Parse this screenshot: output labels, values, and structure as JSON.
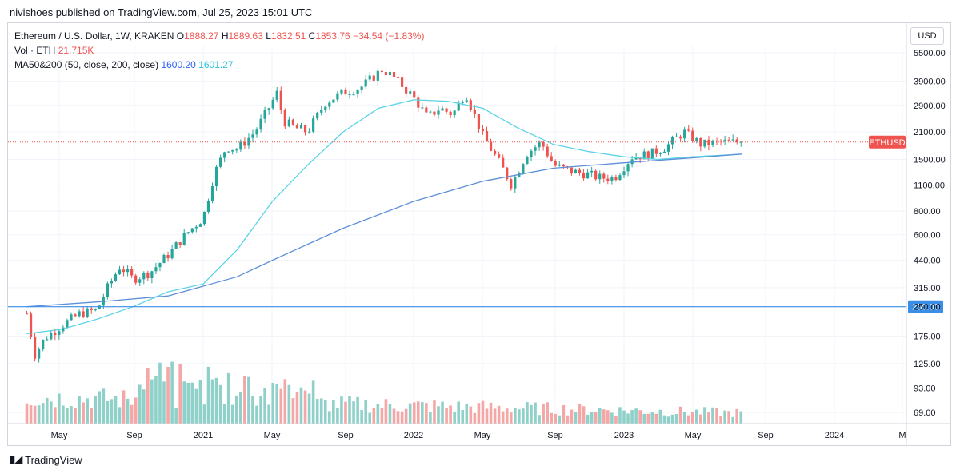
{
  "publisher": "nivishoes published on TradingView.com, Jul 25, 2023 15:01 UTC",
  "legend": {
    "symbol": "Ethereum / U.S. Dollar, 1W, KRAKEN",
    "open_label": "O",
    "open": "1888.27",
    "high_label": "H",
    "high": "1889.63",
    "low_label": "L",
    "low": "1832.51",
    "close_label": "C",
    "close": "1853.76",
    "change": "−34.54 (−1.83%)",
    "vol_label": "Vol · ETH",
    "vol_value": "21.715K",
    "ma_label": "MA50&200 (50, close, 200, close)",
    "ma50_value": "1600.20",
    "ma200_value": "1601.27"
  },
  "currency_button": "USD",
  "price_tag": "ETHUSD",
  "level_tag": "250.00",
  "footer_brand": "TradingView",
  "colors": {
    "up": "#26a69a",
    "down": "#ef5350",
    "up_volume": "#8fd1c9",
    "down_volume": "#f4a7a6",
    "ma50": "#5bd3e6",
    "ma200": "#5b8fd6",
    "level_line": "#3a8ee6"
  },
  "chart_data": {
    "type": "candlestick",
    "title": "Ethereum / U.S. Dollar, 1W, KRAKEN",
    "y_scale": "log",
    "y_ticks": [
      "5500.00",
      "3900.00",
      "2900.00",
      "2100.00",
      "1500.00",
      "1100.00",
      "800.00",
      "600.00",
      "440.00",
      "315.00",
      "250.00",
      "175.00",
      "125.00",
      "93.00",
      "69.00"
    ],
    "x_ticks": [
      "May",
      "Sep",
      "2021",
      "May",
      "Sep",
      "2022",
      "May",
      "Sep",
      "2023",
      "May",
      "Sep",
      "2024",
      "M"
    ],
    "horizontal_level": 250,
    "last_close": 1853.76,
    "close_series": {
      "x": [
        "2020-03-01",
        "2020-03-15",
        "2020-04-01",
        "2020-05-01",
        "2020-06-01",
        "2020-07-01",
        "2020-07-20",
        "2020-08-10",
        "2020-09-01",
        "2020-10-01",
        "2020-11-01",
        "2020-12-01",
        "2021-01-01",
        "2021-01-20",
        "2021-02-10",
        "2021-03-01",
        "2021-04-01",
        "2021-05-10",
        "2021-05-20",
        "2021-06-10",
        "2021-07-01",
        "2021-08-01",
        "2021-09-01",
        "2021-10-01",
        "2021-11-08",
        "2021-12-01",
        "2022-01-01",
        "2022-01-25",
        "2022-02-15",
        "2022-03-10",
        "2022-04-01",
        "2022-05-01",
        "2022-06-01",
        "2022-06-20",
        "2022-07-15",
        "2022-08-10",
        "2022-09-01",
        "2022-10-01",
        "2022-11-01",
        "2022-11-20",
        "2022-12-15",
        "2023-01-15",
        "2023-02-15",
        "2023-03-15",
        "2023-04-15",
        "2023-05-15",
        "2023-06-15",
        "2023-07-24"
      ],
      "values": [
        230,
        140,
        170,
        200,
        230,
        240,
        320,
        410,
        350,
        380,
        470,
        600,
        740,
        1250,
        1750,
        1700,
        2100,
        3400,
        2400,
        2200,
        2100,
        3000,
        3400,
        3600,
        4500,
        4000,
        3200,
        2500,
        2800,
        2600,
        3400,
        2000,
        1400,
        1100,
        1600,
        1850,
        1400,
        1300,
        1250,
        1200,
        1200,
        1550,
        1600,
        1750,
        2100,
        1800,
        1850,
        1853.76
      ]
    },
    "ma50": {
      "x": [
        "2020-03-01",
        "2020-05-01",
        "2020-07-01",
        "2020-09-01",
        "2020-11-01",
        "2021-01-01",
        "2021-03-01",
        "2021-05-01",
        "2021-07-01",
        "2021-09-01",
        "2021-11-01",
        "2022-01-01",
        "2022-03-01",
        "2022-05-01",
        "2022-07-01",
        "2022-09-01",
        "2022-11-01",
        "2023-01-01",
        "2023-03-01",
        "2023-05-01",
        "2023-07-24"
      ],
      "values": [
        180,
        190,
        215,
        250,
        300,
        330,
        500,
        900,
        1400,
        2100,
        2800,
        3100,
        3050,
        2800,
        2200,
        1800,
        1650,
        1550,
        1500,
        1550,
        1600.2
      ]
    },
    "ma200": {
      "x": [
        "2020-03-01",
        "2020-07-01",
        "2020-11-01",
        "2021-03-01",
        "2021-05-01",
        "2021-09-01",
        "2022-01-01",
        "2022-05-01",
        "2022-09-01",
        "2023-01-01",
        "2023-05-01",
        "2023-07-24"
      ],
      "values": [
        250,
        265,
        285,
        360,
        440,
        650,
        900,
        1150,
        1350,
        1440,
        1530,
        1601.27
      ]
    },
    "volume": {
      "unit": "ETH",
      "last": "21.715K"
    }
  }
}
